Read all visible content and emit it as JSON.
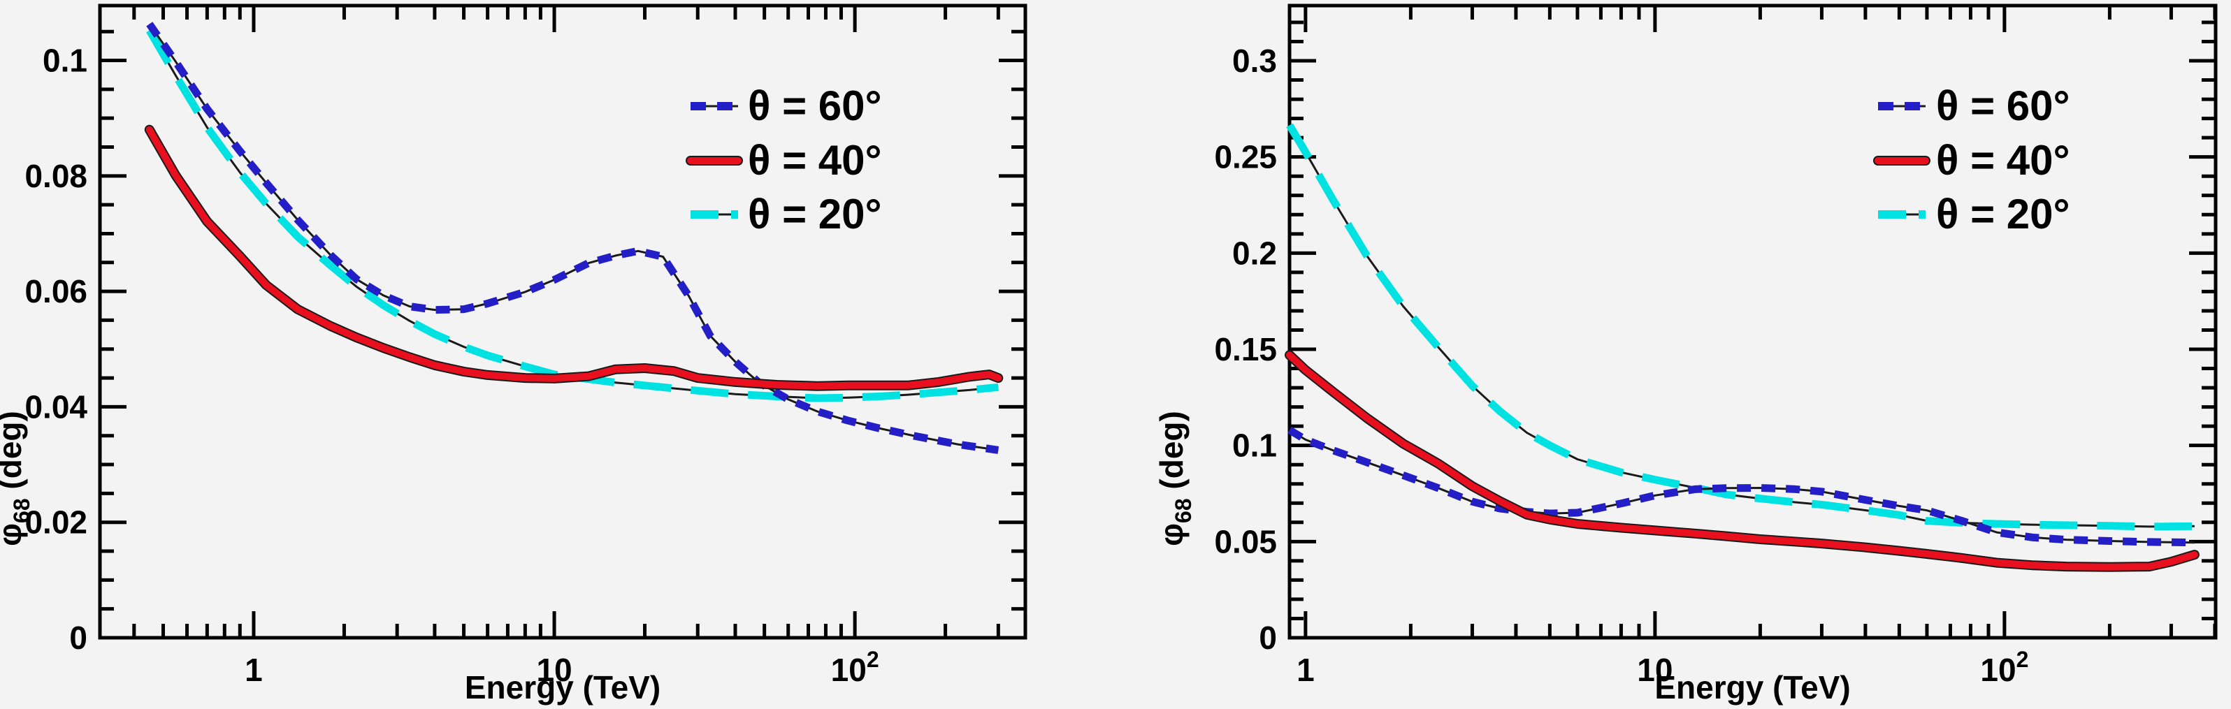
{
  "figure": {
    "background": "#f3f3f4",
    "frame_color": "#000000",
    "underlay_color": "#1a1a1a"
  },
  "legend_labels": [
    "θ = 60°",
    "θ = 40°",
    "θ = 20°"
  ],
  "chart_data": [
    {
      "type": "line",
      "panel": "left",
      "title": "",
      "xlabel": "Energy (TeV)",
      "ylabel_symbol": "φ",
      "ylabel_sub": "68",
      "ylabel_rest": " (deg)",
      "xscale": "log",
      "grid": false,
      "xlim": [
        0.308,
        369
      ],
      "ylim": [
        0,
        0.1095
      ],
      "ytick_major": 0.02,
      "ytick_minor": 0.005,
      "yticks": [
        {
          "v": 0,
          "t": "0"
        },
        {
          "v": 0.02,
          "t": "0.02"
        },
        {
          "v": 0.04,
          "t": "0.04"
        },
        {
          "v": 0.06,
          "t": "0.06"
        },
        {
          "v": 0.08,
          "t": "0.08"
        },
        {
          "v": 0.1,
          "t": "0.1"
        }
      ],
      "xticks": [
        {
          "v": 1,
          "t": "1",
          "sup": ""
        },
        {
          "v": 10,
          "t": "10",
          "sup": ""
        },
        {
          "v": 100,
          "t": "10",
          "sup": "2"
        }
      ],
      "legend_position": "upper-right-inside",
      "series": [
        {
          "name": "theta-20",
          "label": "θ = 20°",
          "color": "#00e2e2",
          "style": "long-dash",
          "points": [
            [
              0.45,
              0.1052
            ],
            [
              0.55,
              0.0974
            ],
            [
              0.7,
              0.0884
            ],
            [
              0.9,
              0.0806
            ],
            [
              1.1,
              0.0752
            ],
            [
              1.4,
              0.0695
            ],
            [
              1.8,
              0.0645
            ],
            [
              2.2,
              0.0608
            ],
            [
              2.7,
              0.0576
            ],
            [
              3.3,
              0.0549
            ],
            [
              4,
              0.0526
            ],
            [
              5,
              0.0504
            ],
            [
              6,
              0.0489
            ],
            [
              8,
              0.047
            ],
            [
              10,
              0.0456
            ],
            [
              13,
              0.0448
            ],
            [
              16,
              0.0442
            ],
            [
              20,
              0.0437
            ],
            [
              25,
              0.0432
            ],
            [
              30,
              0.0428
            ],
            [
              40,
              0.0422
            ],
            [
              55,
              0.0418
            ],
            [
              75,
              0.0415
            ],
            [
              95,
              0.0416
            ],
            [
              120,
              0.0418
            ],
            [
              150,
              0.0421
            ],
            [
              190,
              0.0425
            ],
            [
              240,
              0.0429
            ],
            [
              300,
              0.0434
            ]
          ]
        },
        {
          "name": "theta-60",
          "label": "θ = 60°",
          "color": "#241ec7",
          "style": "short-dash",
          "points": [
            [
              0.45,
              0.1063
            ],
            [
              0.55,
              0.0998
            ],
            [
              0.7,
              0.0916
            ],
            [
              0.9,
              0.0843
            ],
            [
              1.1,
              0.0788
            ],
            [
              1.4,
              0.0724
            ],
            [
              1.8,
              0.0663
            ],
            [
              2.2,
              0.0621
            ],
            [
              2.7,
              0.0593
            ],
            [
              3.3,
              0.0574
            ],
            [
              4,
              0.0568
            ],
            [
              5,
              0.0569
            ],
            [
              6,
              0.0579
            ],
            [
              8,
              0.0599
            ],
            [
              10,
              0.062
            ],
            [
              13,
              0.0649
            ],
            [
              16,
              0.0662
            ],
            [
              19,
              0.067
            ],
            [
              23,
              0.066
            ],
            [
              28,
              0.0592
            ],
            [
              33,
              0.0523
            ],
            [
              40,
              0.0478
            ],
            [
              48,
              0.0442
            ],
            [
              60,
              0.0413
            ],
            [
              75,
              0.0392
            ],
            [
              95,
              0.0376
            ],
            [
              120,
              0.0363
            ],
            [
              160,
              0.0349
            ],
            [
              220,
              0.0335
            ],
            [
              300,
              0.0325
            ]
          ]
        },
        {
          "name": "theta-40",
          "label": "θ = 40°",
          "color": "#e8101e",
          "style": "solid",
          "points": [
            [
              0.45,
              0.088
            ],
            [
              0.55,
              0.0801
            ],
            [
              0.7,
              0.0721
            ],
            [
              0.9,
              0.0661
            ],
            [
              1.1,
              0.0611
            ],
            [
              1.4,
              0.0569
            ],
            [
              1.8,
              0.054
            ],
            [
              2.2,
              0.052
            ],
            [
              2.7,
              0.0502
            ],
            [
              3.3,
              0.0486
            ],
            [
              4,
              0.0472
            ],
            [
              5,
              0.0461
            ],
            [
              6,
              0.0455
            ],
            [
              8,
              0.045
            ],
            [
              10,
              0.0449
            ],
            [
              13,
              0.0453
            ],
            [
              16,
              0.0465
            ],
            [
              20,
              0.0467
            ],
            [
              25,
              0.0462
            ],
            [
              30,
              0.045
            ],
            [
              40,
              0.0443
            ],
            [
              55,
              0.0438
            ],
            [
              75,
              0.0436
            ],
            [
              95,
              0.0437
            ],
            [
              120,
              0.0437
            ],
            [
              150,
              0.0437
            ],
            [
              190,
              0.0443
            ],
            [
              240,
              0.0452
            ],
            [
              280,
              0.0456
            ],
            [
              300,
              0.045
            ]
          ]
        }
      ]
    },
    {
      "type": "line",
      "panel": "right",
      "title": "",
      "xlabel": "Energy (TeV)",
      "ylabel_symbol": "φ",
      "ylabel_sub": "68",
      "ylabel_rest": " (deg)",
      "xscale": "log",
      "grid": false,
      "xlim": [
        0.9,
        402
      ],
      "ylim": [
        0,
        0.3287
      ],
      "ytick_major": 0.05,
      "ytick_minor": 0.01,
      "yticks": [
        {
          "v": 0,
          "t": "0"
        },
        {
          "v": 0.05,
          "t": "0.05"
        },
        {
          "v": 0.1,
          "t": "0.1"
        },
        {
          "v": 0.15,
          "t": "0.15"
        },
        {
          "v": 0.2,
          "t": "0.2"
        },
        {
          "v": 0.25,
          "t": "0.25"
        },
        {
          "v": 0.3,
          "t": "0.3"
        }
      ],
      "xticks": [
        {
          "v": 1,
          "t": "1",
          "sup": ""
        },
        {
          "v": 10,
          "t": "10",
          "sup": ""
        },
        {
          "v": 100,
          "t": "10",
          "sup": "2"
        }
      ],
      "legend_position": "upper-right-inside",
      "series": [
        {
          "name": "theta-20",
          "label": "θ = 20°",
          "color": "#00e2e2",
          "style": "long-dash",
          "points": [
            [
              0.9,
              0.2665
            ],
            [
              1,
              0.2525
            ],
            [
              1.2,
              0.2275
            ],
            [
              1.5,
              0.1985
            ],
            [
              1.9,
              0.1725
            ],
            [
              2.4,
              0.151
            ],
            [
              3,
              0.131
            ],
            [
              3.6,
              0.1178
            ],
            [
              4.3,
              0.1066
            ],
            [
              5,
              0.1
            ],
            [
              6,
              0.0928
            ],
            [
              8,
              0.086
            ],
            [
              10,
              0.0822
            ],
            [
              13,
              0.078
            ],
            [
              16,
              0.0745
            ],
            [
              20,
              0.0724
            ],
            [
              25,
              0.0705
            ],
            [
              30,
              0.0692
            ],
            [
              40,
              0.0663
            ],
            [
              50,
              0.0638
            ],
            [
              60,
              0.0608
            ],
            [
              75,
              0.0598
            ],
            [
              95,
              0.0592
            ],
            [
              120,
              0.0588
            ],
            [
              150,
              0.0585
            ],
            [
              200,
              0.0582
            ],
            [
              260,
              0.0578
            ],
            [
              350,
              0.058
            ]
          ]
        },
        {
          "name": "theta-60",
          "label": "θ = 60°",
          "color": "#241ec7",
          "style": "short-dash",
          "points": [
            [
              0.9,
              0.108
            ],
            [
              1,
              0.103
            ],
            [
              1.2,
              0.0974
            ],
            [
              1.5,
              0.0912
            ],
            [
              1.9,
              0.0845
            ],
            [
              2.4,
              0.0778
            ],
            [
              3,
              0.0708
            ],
            [
              3.6,
              0.0672
            ],
            [
              4.3,
              0.0655
            ],
            [
              5,
              0.0646
            ],
            [
              6,
              0.065
            ],
            [
              8,
              0.0698
            ],
            [
              10,
              0.074
            ],
            [
              13,
              0.0772
            ],
            [
              16,
              0.0778
            ],
            [
              20,
              0.0779
            ],
            [
              25,
              0.0773
            ],
            [
              30,
              0.076
            ],
            [
              40,
              0.0717
            ],
            [
              50,
              0.0685
            ],
            [
              60,
              0.0662
            ],
            [
              75,
              0.061
            ],
            [
              95,
              0.0548
            ],
            [
              120,
              0.0522
            ],
            [
              150,
              0.051
            ],
            [
              200,
              0.0503
            ],
            [
              260,
              0.0498
            ],
            [
              350,
              0.0495
            ]
          ]
        },
        {
          "name": "theta-40",
          "label": "θ = 40°",
          "color": "#e8101e",
          "style": "solid",
          "points": [
            [
              0.9,
              0.147
            ],
            [
              1,
              0.1392
            ],
            [
              1.2,
              0.1278
            ],
            [
              1.5,
              0.1142
            ],
            [
              1.9,
              0.101
            ],
            [
              2.4,
              0.0905
            ],
            [
              3,
              0.0788
            ],
            [
              3.6,
              0.071
            ],
            [
              4.3,
              0.064
            ],
            [
              5,
              0.0615
            ],
            [
              6,
              0.0592
            ],
            [
              8,
              0.0572
            ],
            [
              10,
              0.0558
            ],
            [
              13,
              0.0542
            ],
            [
              16,
              0.0528
            ],
            [
              20,
              0.0512
            ],
            [
              25,
              0.05
            ],
            [
              30,
              0.049
            ],
            [
              40,
              0.047
            ],
            [
              50,
              0.0452
            ],
            [
              60,
              0.0436
            ],
            [
              75,
              0.0415
            ],
            [
              95,
              0.039
            ],
            [
              120,
              0.0377
            ],
            [
              150,
              0.037
            ],
            [
              200,
              0.0368
            ],
            [
              260,
              0.037
            ],
            [
              300,
              0.0395
            ],
            [
              350,
              0.0432
            ]
          ]
        }
      ]
    }
  ]
}
